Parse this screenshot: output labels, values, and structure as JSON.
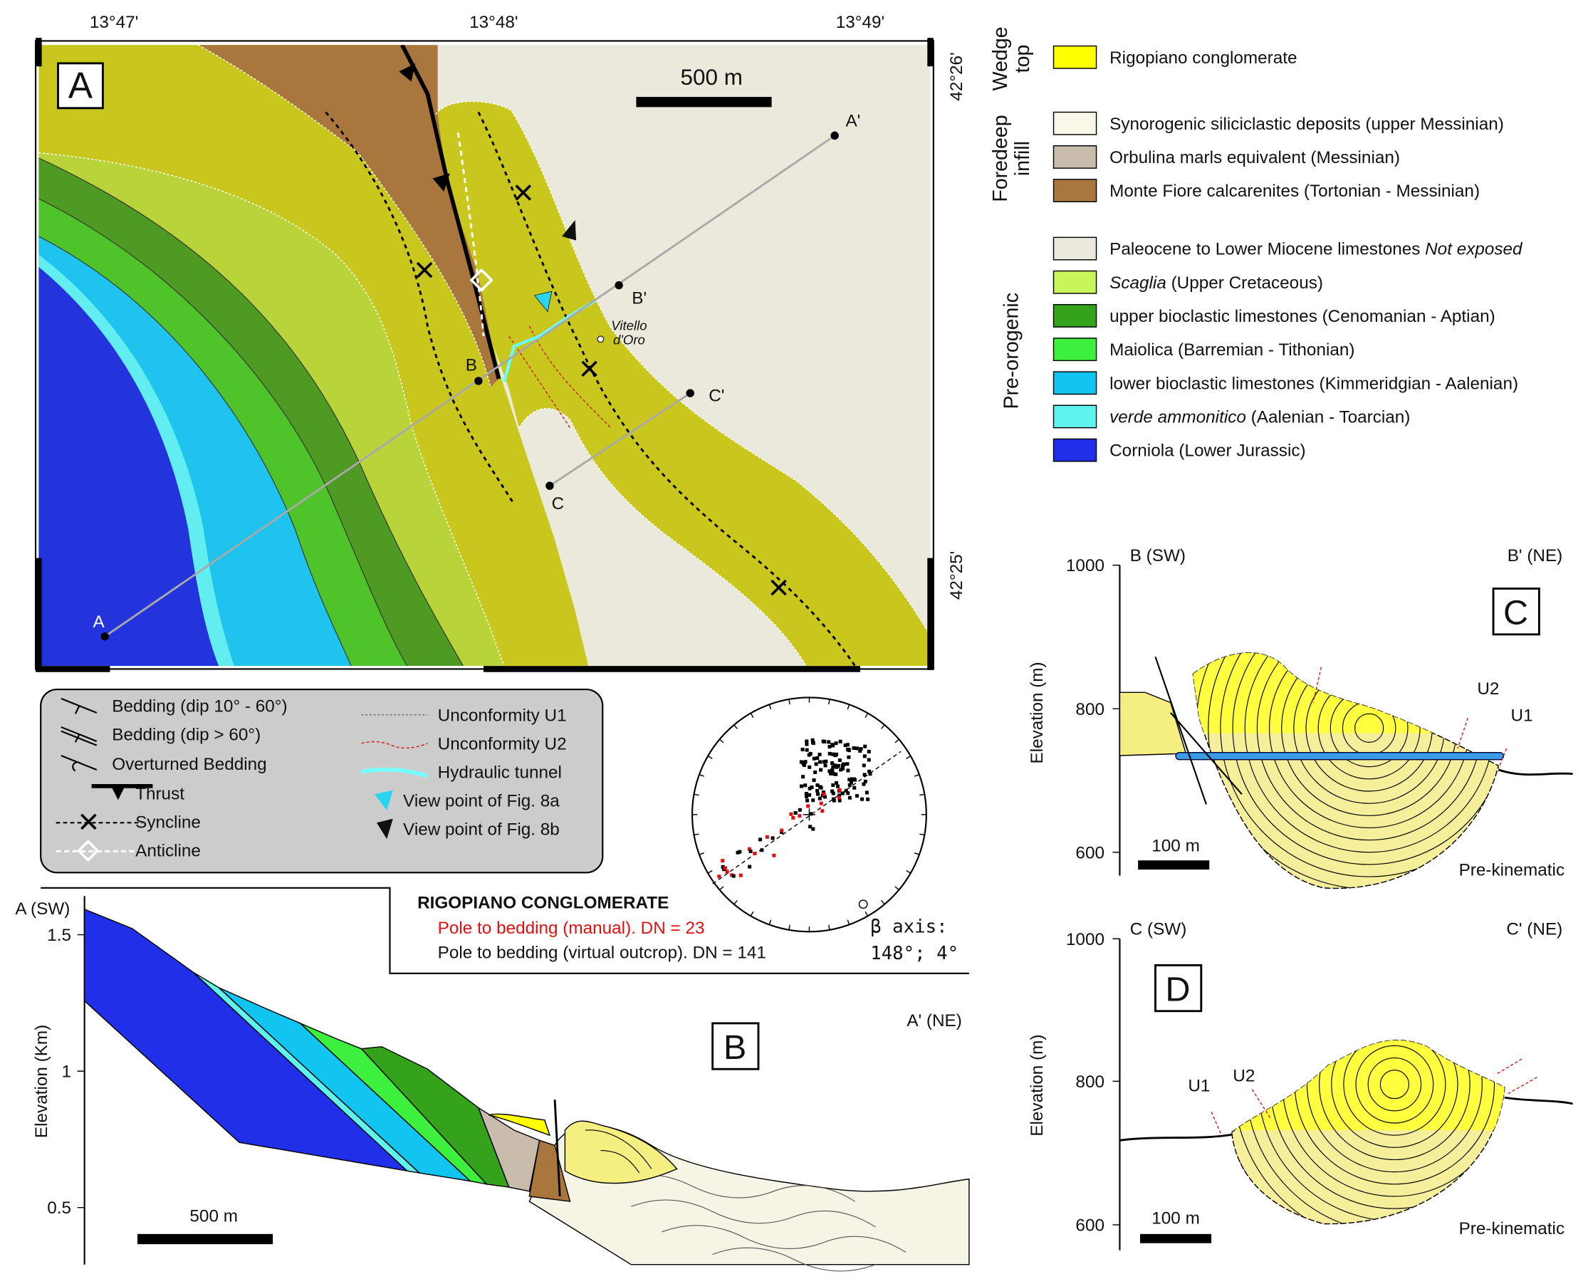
{
  "map": {
    "panel_label": "A",
    "scale_label": "500 m",
    "lon_labels": [
      "13°47'",
      "13°48'",
      "13°49'"
    ],
    "lat_labels": [
      "42°26'",
      "42°25'"
    ],
    "points": [
      "A",
      "A'",
      "B",
      "B'",
      "C",
      "C'"
    ],
    "locality": [
      "Vitello",
      "d'Oro"
    ]
  },
  "legend": {
    "groups": [
      {
        "label": [
          "Wedge",
          "top"
        ],
        "items": [
          {
            "color": "#ffff00",
            "parts": [
              {
                "text": "Rigopiano conglomerate"
              }
            ]
          }
        ]
      },
      {
        "label": [
          "Foredeep",
          "infill"
        ],
        "items": [
          {
            "color": "#f8f7e8",
            "parts": [
              {
                "text": "Synorogenic siliciclastic deposits (upper Messinian)"
              }
            ]
          },
          {
            "color": "#c9bcad",
            "parts": [
              {
                "text": "Orbulina marls equivalent (Messinian)"
              }
            ]
          },
          {
            "color": "#a9773d",
            "parts": [
              {
                "text": "Monte Fiore calcarenites  (Tortonian - Messinian)"
              }
            ]
          }
        ]
      },
      {
        "label": [
          "Pre-orogenic"
        ],
        "items": [
          {
            "color": "#ebe9dc",
            "parts": [
              {
                "text": "Paleocene to Lower Miocene limestones "
              },
              {
                "text": "Not exposed",
                "italic": true
              }
            ]
          },
          {
            "color": "#c8f55c",
            "parts": [
              {
                "text": "Scaglia",
                "italic": true
              },
              {
                "text": " (Upper Cretaceous)"
              }
            ]
          },
          {
            "color": "#35a21c",
            "parts": [
              {
                "text": "upper bioclastic limestones  (Cenomanian - Aptian)"
              }
            ]
          },
          {
            "color": "#3df03d",
            "parts": [
              {
                "text": "Maiolica (Barremian - Tithonian)"
              }
            ]
          },
          {
            "color": "#12c5f0",
            "parts": [
              {
                "text": "lower bioclastic limestones  (Kimmeridgian - Aalenian)"
              }
            ]
          },
          {
            "color": "#5ff3f0",
            "parts": [
              {
                "text": "verde ammonitico",
                "italic": true
              },
              {
                "text": " (Aalenian - Toarcian)"
              }
            ]
          },
          {
            "color": "#2030e8",
            "parts": [
              {
                "text": "Corniola (Lower Jurassic)"
              }
            ]
          }
        ]
      }
    ]
  },
  "symbols": {
    "items": [
      "Bedding (dip 10° - 60°)",
      "Bedding (dip > 60°)",
      "Overturned Bedding",
      "Thrust",
      "Syncline",
      "Anticline",
      "Unconformity U1",
      "Unconformity U2",
      "Hydraulic tunnel",
      "View point of Fig. 8a",
      "View point of Fig. 8b"
    ]
  },
  "stereonet": {
    "title": "RIGOPIANO CONGLOMERATE",
    "manual": "Pole to bedding (manual). DN = 23",
    "virtual": "Pole to bedding (virtual outcrop). DN = 141",
    "beta_label": "β axis:",
    "beta_value": "148°; 4°"
  },
  "section_b": {
    "panel_label": "B",
    "left_end": "A (SW)",
    "right_end": "A' (NE)",
    "axis_label": "Elevation (Km)",
    "ticks": [
      "1.5",
      "1",
      "0.5"
    ],
    "scale_label": "500 m"
  },
  "section_c": {
    "panel_label": "C",
    "left_end": "B (SW)",
    "right_end": "B' (NE)",
    "axis_label": "Elevation (m)",
    "ticks": [
      "1000",
      "800",
      "600"
    ],
    "scale_label": "100 m",
    "unconformities": [
      "U2",
      "U1"
    ],
    "base_label": "Pre-kinematic"
  },
  "section_d": {
    "panel_label": "D",
    "left_end": "C (SW)",
    "right_end": "C' (NE)",
    "axis_label": "Elevation (m)",
    "ticks": [
      "1000",
      "800",
      "600"
    ],
    "scale_label": "100 m",
    "unconformities": [
      "U1",
      "U2"
    ],
    "base_label": "Pre-kinematic"
  }
}
